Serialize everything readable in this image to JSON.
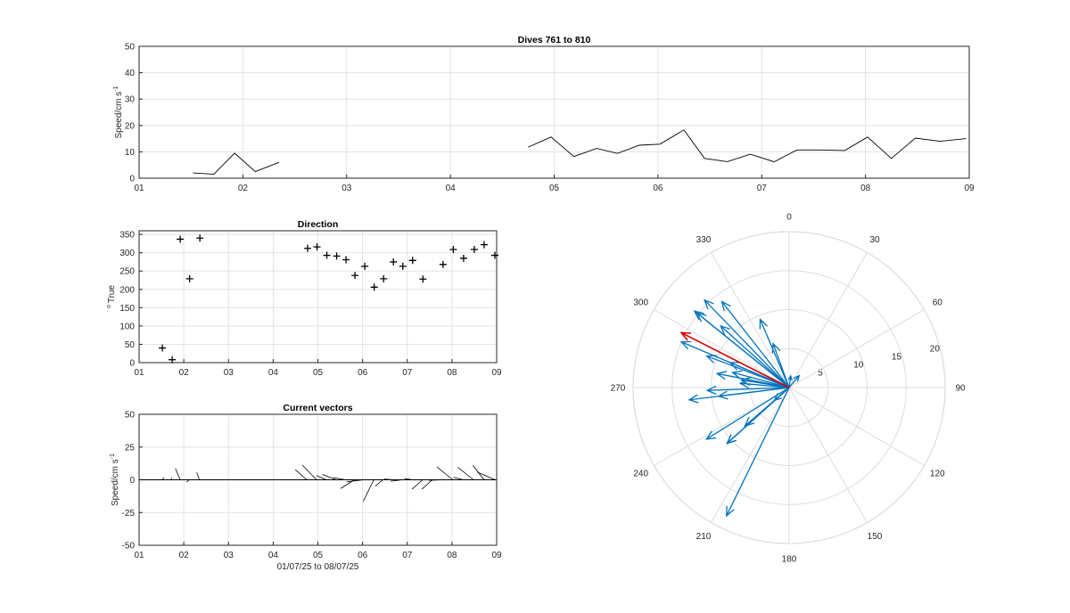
{
  "chart_data": [
    {
      "id": "speed",
      "type": "line",
      "title": "Dives 761 to 810",
      "xlabel": "",
      "ylabel": "Speed/cm s",
      "ylabel_sup": "-1",
      "xlim": [
        1,
        9
      ],
      "ylim": [
        0,
        50
      ],
      "xticks": [
        1,
        2,
        3,
        4,
        5,
        6,
        7,
        8,
        9
      ],
      "xtick_labels": [
        "01",
        "02",
        "03",
        "04",
        "05",
        "06",
        "07",
        "08",
        "09"
      ],
      "yticks": [
        0,
        10,
        20,
        30,
        40,
        50
      ],
      "grid": true,
      "segments": [
        [
          [
            1.52,
            2.0
          ],
          [
            1.72,
            1.5
          ],
          [
            1.92,
            9.5
          ],
          [
            2.12,
            2.5
          ],
          [
            2.35,
            6.0
          ]
        ],
        [
          [
            4.75,
            11.8
          ],
          [
            4.97,
            15.6
          ],
          [
            5.19,
            8.2
          ],
          [
            5.41,
            11.3
          ],
          [
            5.61,
            9.4
          ],
          [
            5.82,
            12.5
          ],
          [
            6.02,
            12.9
          ],
          [
            6.25,
            18.3
          ],
          [
            6.45,
            7.5
          ],
          [
            6.67,
            6.3
          ],
          [
            6.89,
            9.1
          ],
          [
            7.12,
            6.2
          ],
          [
            7.34,
            10.7
          ],
          [
            7.56,
            10.7
          ],
          [
            7.8,
            10.5
          ],
          [
            8.02,
            15.6
          ],
          [
            8.25,
            7.5
          ],
          [
            8.48,
            15.2
          ],
          [
            8.72,
            14.0
          ],
          [
            8.97,
            15.0
          ]
        ]
      ]
    },
    {
      "id": "direction",
      "type": "scatter",
      "title": "Direction",
      "xlabel": "",
      "ylabel": "True",
      "ylabel_sup": "o",
      "xlim": [
        1,
        9
      ],
      "ylim": [
        0,
        360
      ],
      "xticks": [
        1,
        2,
        3,
        4,
        5,
        6,
        7,
        8,
        9
      ],
      "xtick_labels": [
        "01",
        "02",
        "03",
        "04",
        "05",
        "06",
        "07",
        "08",
        "09"
      ],
      "yticks": [
        0,
        50,
        100,
        150,
        200,
        250,
        300,
        350
      ],
      "grid": true,
      "points": [
        [
          1.52,
          40
        ],
        [
          1.74,
          8
        ],
        [
          1.92,
          337
        ],
        [
          2.13,
          229
        ],
        [
          2.36,
          340
        ],
        [
          4.77,
          312
        ],
        [
          4.98,
          316
        ],
        [
          5.2,
          293
        ],
        [
          5.42,
          291
        ],
        [
          5.63,
          281
        ],
        [
          5.83,
          238
        ],
        [
          6.05,
          263
        ],
        [
          6.26,
          206
        ],
        [
          6.47,
          229
        ],
        [
          6.69,
          275
        ],
        [
          6.9,
          263
        ],
        [
          7.12,
          279
        ],
        [
          7.35,
          228
        ],
        [
          7.8,
          268
        ],
        [
          8.03,
          309
        ],
        [
          8.26,
          285
        ],
        [
          8.5,
          309
        ],
        [
          8.72,
          322
        ],
        [
          8.96,
          293
        ]
      ]
    },
    {
      "id": "vectors",
      "type": "quiver",
      "title": "Current vectors",
      "xlabel": "01/07/25 to 08/07/25",
      "ylabel": "Speed/cm s",
      "ylabel_sup": "-1",
      "xlim": [
        1,
        9
      ],
      "ylim": [
        -50,
        50
      ],
      "xticks": [
        1,
        2,
        3,
        4,
        5,
        6,
        7,
        8,
        9
      ],
      "xtick_labels": [
        "01",
        "02",
        "03",
        "04",
        "05",
        "06",
        "07",
        "08",
        "09"
      ],
      "yticks": [
        -50,
        -25,
        0,
        25,
        50
      ],
      "ytick_labels": [
        "-50",
        "-25",
        "0",
        "25",
        "50"
      ],
      "grid": true
    },
    {
      "id": "compass",
      "type": "polar",
      "rticks": [
        5,
        10,
        15,
        20
      ],
      "rmax": 20,
      "angle_labels": [
        "0",
        "30",
        "60",
        "90",
        "120",
        "150",
        "180",
        "210",
        "240",
        "270",
        "300",
        "330"
      ],
      "arrow_color": "#0072BD",
      "mean_color": "#D40000",
      "mean_vector": {
        "speed": 15.5,
        "direction": 297
      }
    }
  ]
}
